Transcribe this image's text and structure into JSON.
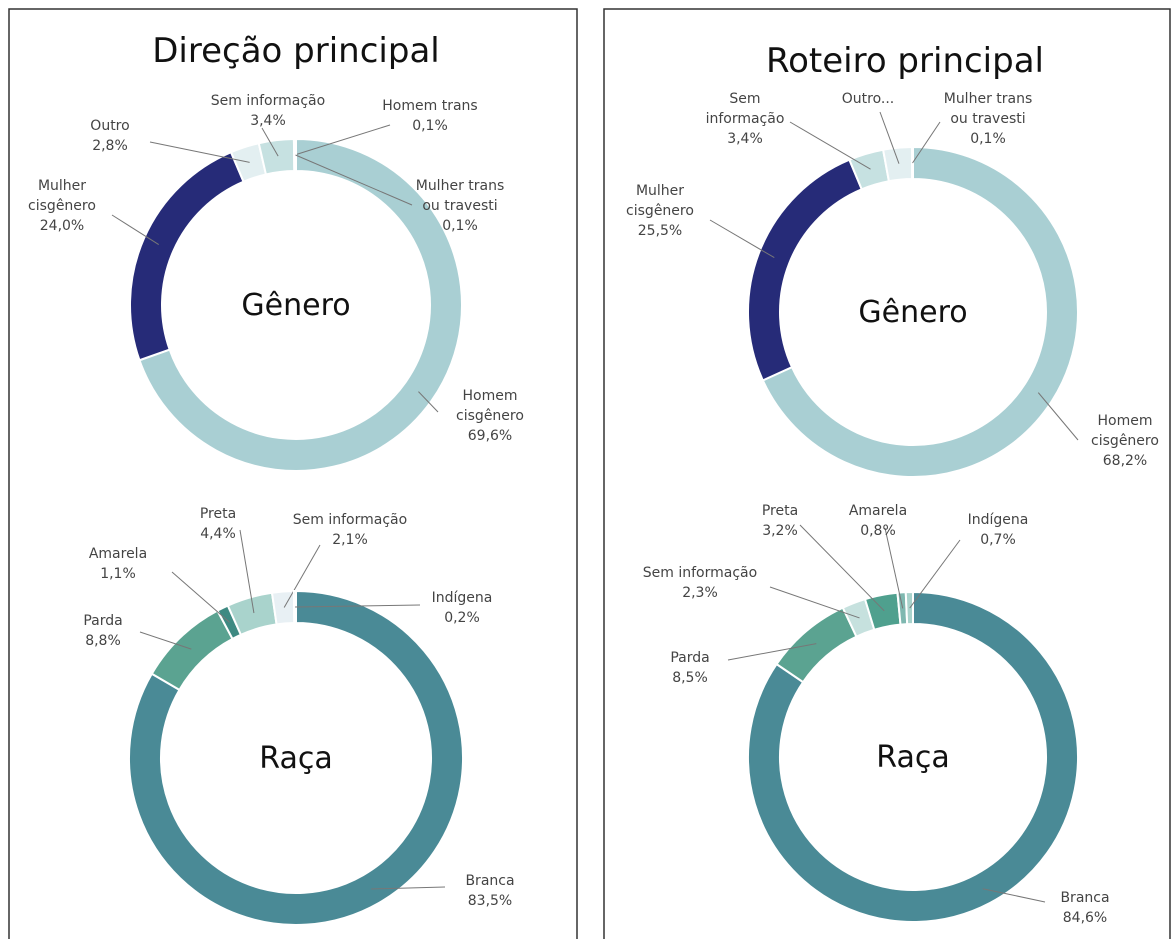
{
  "panels": [
    {
      "title": "Direção principal"
    },
    {
      "title": "Roteiro principal"
    }
  ],
  "chart_data": [
    {
      "type": "donut",
      "title": "Gênero",
      "categories": [
        "Homem cisgênero",
        "Mulher cisgênero",
        "Outro",
        "Sem informação",
        "Homem trans",
        "Mulher trans ou travesti"
      ],
      "values": [
        69.6,
        24.0,
        2.8,
        3.4,
        0.1,
        0.1
      ],
      "value_labels": [
        "69,6%",
        "24,0%",
        "2,8%",
        "3,4%",
        "0,1%",
        "0,1%"
      ],
      "colors": [
        "#a9cfd3",
        "#262b78",
        "#e3eff1",
        "#c6e1e1",
        "#9fc9cc",
        "#8fbfc4"
      ]
    },
    {
      "type": "donut",
      "title": "Gênero",
      "categories": [
        "Homem cisgênero",
        "Mulher cisgênero",
        "Sem informação",
        "Outro...",
        "Mulher trans ou travesti"
      ],
      "values": [
        68.2,
        25.5,
        3.4,
        2.8,
        0.1
      ],
      "value_labels": [
        "68,2%",
        "25,5%",
        "3,4%",
        null,
        "0,1%"
      ],
      "colors": [
        "#a9cfd3",
        "#262b78",
        "#c6e1e1",
        "#e3eff1",
        "#8fbfc4"
      ]
    },
    {
      "type": "donut",
      "title": "Raça",
      "categories": [
        "Branca",
        "Parda",
        "Amarela",
        "Preta",
        "Sem informação",
        "Indígena"
      ],
      "values": [
        83.5,
        8.8,
        1.1,
        4.4,
        2.1,
        0.2
      ],
      "value_labels": [
        "83,5%",
        "8,8%",
        "1,1%",
        "4,4%",
        "2,1%",
        "0,2%"
      ],
      "colors": [
        "#4a8a96",
        "#5ba391",
        "#3e8a82",
        "#a9d3cc",
        "#e8f0f4",
        "#7fb0b8"
      ]
    },
    {
      "type": "donut",
      "title": "Raça",
      "categories": [
        "Branca",
        "Parda",
        "Sem informação",
        "Preta",
        "Amarela",
        "Indígena"
      ],
      "values": [
        84.6,
        8.5,
        2.3,
        3.2,
        0.8,
        0.7
      ],
      "value_labels": [
        "84,6%",
        "8,5%",
        "2,3%",
        "3,2%",
        "0,8%",
        "0,7%"
      ],
      "colors": [
        "#4a8a96",
        "#5ba391",
        "#c6e1de",
        "#4fa08e",
        "#7fb8b0",
        "#a9d3cc"
      ]
    }
  ]
}
